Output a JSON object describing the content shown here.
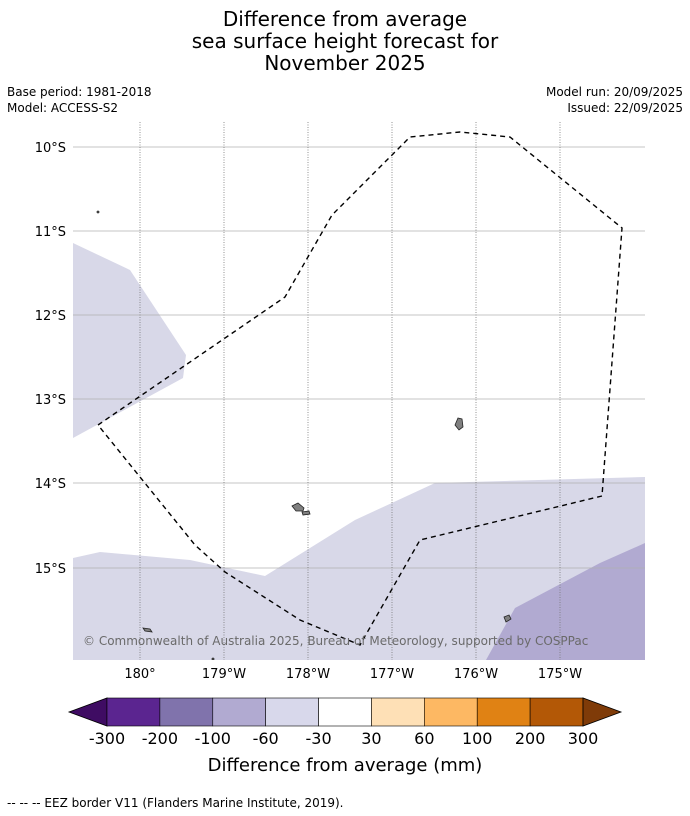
{
  "title": {
    "line1": "Difference from average",
    "line2": "sea surface height forecast for",
    "line3": "November 2025"
  },
  "meta": {
    "base_period": "Base period: 1981-2018",
    "model": "Model: ACCESS-S2",
    "model_run": "Model run: 20/09/2025",
    "issued": "Issued: 22/09/2025"
  },
  "map": {
    "lat_labels": [
      "10°S",
      "11°S",
      "12°S",
      "13°S",
      "14°S",
      "15°S"
    ],
    "lon_labels": [
      "180°",
      "179°W",
      "178°W",
      "177°W",
      "176°W",
      "175°W"
    ],
    "copyright": "© Commonwealth of Australia 2025, Bureau of Meteorology, supported by COSPPac",
    "region_colors": {
      "light_lavender": "#d8d8e8",
      "medium_lavender": "#b1aad1",
      "land": "#808080"
    }
  },
  "legend": {
    "title": "Difference from average (mm)",
    "ticks": [
      "-300",
      "-200",
      "-100",
      "-60",
      "-30",
      "30",
      "60",
      "100",
      "200",
      "300"
    ],
    "colors": [
      "#3f0c63",
      "#5b2590",
      "#8073ac",
      "#b1aad1",
      "#d8d8eb",
      "#ffffff",
      "#fee0b6",
      "#fdb863",
      "#e08214",
      "#b35806",
      "#7f3b08"
    ]
  },
  "footer": {
    "eez_label": "--  --  -- EEZ border V11 (Flanders Marine Institute, 2019)."
  }
}
